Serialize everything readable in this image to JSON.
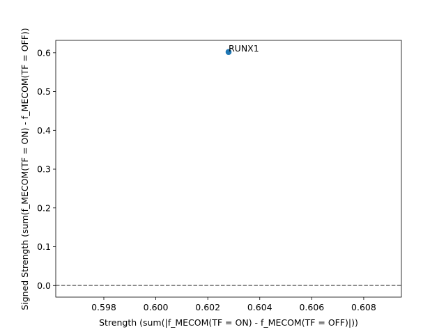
{
  "chart_data": {
    "type": "scatter",
    "title": "",
    "xlabel": "Strength (sum(|f_MECOM(TF = ON) - f_MECOM(TF = OFF)|))",
    "ylabel": "Signed Strength (sum(f_MECOM(TF = ON) - f_MECOM(TF = OFF))",
    "xlim": [
      0.59615,
      0.60945
    ],
    "ylim": [
      -0.03,
      0.632
    ],
    "xticks": [
      0.598,
      0.6,
      0.602,
      0.604,
      0.606,
      0.608
    ],
    "xtick_labels": [
      "0.598",
      "0.600",
      "0.602",
      "0.604",
      "0.606",
      "0.608"
    ],
    "yticks": [
      0.0,
      0.1,
      0.2,
      0.3,
      0.4,
      0.5,
      0.6
    ],
    "ytick_labels": [
      "0.0",
      "0.1",
      "0.2",
      "0.3",
      "0.4",
      "0.5",
      "0.6"
    ],
    "points": [
      {
        "x": 0.6028,
        "y": 0.602,
        "label": "RUNX1"
      }
    ],
    "reference_line": {
      "y": 0.0,
      "style": "dashed",
      "color": "#808080"
    },
    "marker_color": "#1f77b4",
    "grid": false,
    "legend": "none"
  }
}
